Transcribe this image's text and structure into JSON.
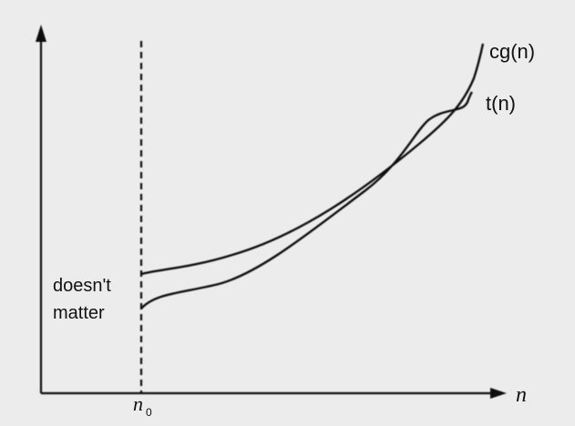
{
  "diagram": {
    "curves": {
      "upper": {
        "label": "cg(n)"
      },
      "lower": {
        "label": "t(n)"
      }
    },
    "x_axis": {
      "label": "n"
    },
    "threshold": {
      "label": "n",
      "subscript": "0"
    },
    "region_note": {
      "line1": "doesn't",
      "line2": "matter"
    }
  }
}
